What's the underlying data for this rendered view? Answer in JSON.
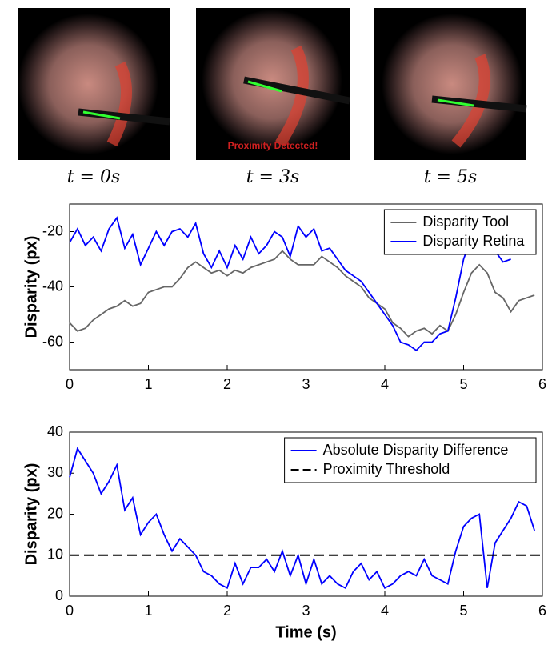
{
  "panels": [
    {
      "caption": "t = 0s"
    },
    {
      "caption": "t = 3s",
      "annotation": "Proximity Detected!"
    },
    {
      "caption": "t = 5s"
    }
  ],
  "chart_data": [
    {
      "type": "line",
      "ylabel": "Disparity (px)",
      "legend": "upper-right",
      "x": [
        0,
        0.1,
        0.2,
        0.3,
        0.4,
        0.5,
        0.6,
        0.7,
        0.8,
        0.9,
        1.0,
        1.1,
        1.2,
        1.3,
        1.4,
        1.5,
        1.6,
        1.7,
        1.8,
        1.9,
        2.0,
        2.1,
        2.2,
        2.3,
        2.4,
        2.5,
        2.6,
        2.7,
        2.8,
        2.9,
        3.0,
        3.1,
        3.2,
        3.3,
        3.4,
        3.5,
        3.6,
        3.7,
        3.8,
        3.9,
        4.0,
        4.1,
        4.2,
        4.3,
        4.4,
        4.5,
        4.6,
        4.7,
        4.8,
        4.9,
        5.0,
        5.1,
        5.2,
        5.3,
        5.4,
        5.5,
        5.6,
        5.7,
        5.8,
        5.9
      ],
      "series": [
        {
          "name": "Disparity Tool",
          "color": "#666666",
          "values": [
            -53,
            -56,
            -55,
            -52,
            -50,
            -48,
            -47,
            -45,
            -47,
            -46,
            -42,
            -41,
            -40,
            -40,
            -37,
            -33,
            -31,
            -33,
            -35,
            -34,
            -36,
            -34,
            -35,
            -33,
            -32,
            -31,
            -30,
            -27,
            -30,
            -32,
            -32,
            -32,
            -29,
            -31,
            -33,
            -36,
            -38,
            -40,
            -44,
            -46,
            -48,
            -53,
            -55,
            -58,
            -56,
            -55,
            -57,
            -54,
            -56,
            -50,
            -42,
            -35,
            -32,
            -35,
            -42,
            -44,
            -49,
            -45,
            -44,
            -43
          ]
        },
        {
          "name": "Disparity Retina",
          "color": "#0000ff",
          "values": [
            -24,
            -19,
            -25,
            -22,
            -27,
            -19,
            -15,
            -26,
            -21,
            -32,
            -26,
            -20,
            -25,
            -20,
            -19,
            -22,
            -17,
            -28,
            -33,
            -27,
            -33,
            -25,
            -30,
            -22,
            -28,
            -25,
            -20,
            -22,
            -29,
            -18,
            -22,
            -19,
            -27,
            -26,
            -30,
            -34,
            -36,
            -38,
            -42,
            -46,
            -50,
            -54,
            -60,
            -61,
            -63,
            -60,
            -60,
            -57,
            -56,
            -44,
            -30,
            -22,
            -18,
            -20,
            -27,
            -31,
            -30,
            null,
            null,
            null
          ]
        }
      ],
      "xlim": [
        0,
        6
      ],
      "xticks": [
        0,
        1,
        2,
        3,
        4,
        5,
        6
      ],
      "ylim": [
        -70,
        -10
      ],
      "yticks": [
        -60,
        -40,
        -20
      ]
    },
    {
      "type": "line",
      "xlabel": "Time (s)",
      "ylabel": "Disparity (px)",
      "legend": "upper-right",
      "x": [
        0,
        0.1,
        0.2,
        0.3,
        0.4,
        0.5,
        0.6,
        0.7,
        0.8,
        0.9,
        1.0,
        1.1,
        1.2,
        1.3,
        1.4,
        1.5,
        1.6,
        1.7,
        1.8,
        1.9,
        2.0,
        2.1,
        2.2,
        2.3,
        2.4,
        2.5,
        2.6,
        2.7,
        2.8,
        2.9,
        3.0,
        3.1,
        3.2,
        3.3,
        3.4,
        3.5,
        3.6,
        3.7,
        3.8,
        3.9,
        4.0,
        4.1,
        4.2,
        4.3,
        4.4,
        4.5,
        4.6,
        4.7,
        4.8,
        4.9,
        5.0,
        5.1,
        5.2,
        5.3,
        5.4,
        5.5,
        5.6,
        5.7,
        5.8,
        5.9
      ],
      "series": [
        {
          "name": "Absolute Disparity Difference",
          "color": "#0000ff",
          "values": [
            29,
            36,
            33,
            30,
            25,
            28,
            32,
            21,
            24,
            15,
            18,
            20,
            15,
            11,
            14,
            12,
            10,
            6,
            5,
            3,
            2,
            8,
            3,
            7,
            7,
            9,
            6,
            11,
            5,
            10,
            3,
            9,
            3,
            5,
            3,
            2,
            6,
            8,
            4,
            6,
            2,
            3,
            5,
            6,
            5,
            9,
            5,
            4,
            3,
            11,
            17,
            19,
            20,
            2,
            13,
            16,
            19,
            23,
            22,
            16
          ]
        },
        {
          "name": "Proximity Threshold",
          "color": "#000000",
          "dashed": true,
          "x": [
            0,
            6
          ],
          "values": [
            10,
            10
          ]
        }
      ],
      "xlim": [
        0,
        6
      ],
      "xticks": [
        0,
        1,
        2,
        3,
        4,
        5,
        6
      ],
      "ylim": [
        0,
        40
      ],
      "yticks": [
        0,
        10,
        20,
        30,
        40
      ]
    }
  ]
}
